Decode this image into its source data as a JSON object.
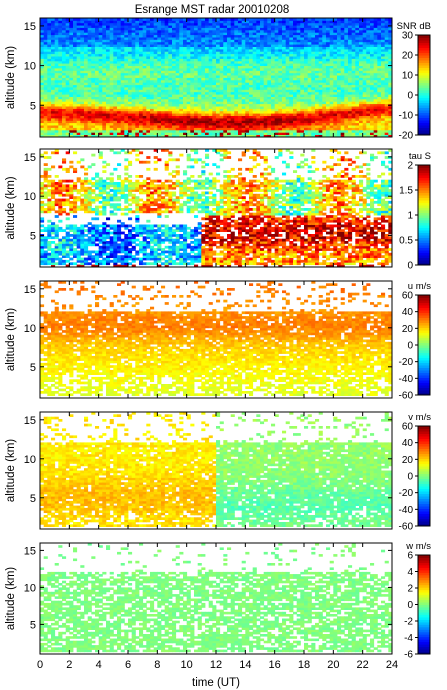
{
  "chart_data": [
    {
      "type": "heatmap",
      "title": "Esrange MST radar 20010208",
      "variable": "SNR",
      "colorbar_label": "SNR dB",
      "ylabel": "altitude (km)",
      "xlabel": "",
      "xlim": [
        0,
        24
      ],
      "ylim": [
        1,
        16
      ],
      "yticks": [
        5,
        10,
        15
      ],
      "xticks": [
        0,
        2,
        4,
        6,
        8,
        10,
        12,
        14,
        16,
        18,
        20,
        22,
        24
      ],
      "xtick_labels_shown": false,
      "clim": [
        -20,
        30
      ],
      "colorbar_ticks": [
        -20,
        -10,
        0,
        10,
        20,
        30
      ],
      "description_of_values": "Blue noise above ~12 km, green/yellow 7-12 km, strong red/orange layer ~2-5 km descending from ~4.5 km to ~3 km then rising after 16 UT; cyan band with red streaks near ground (1-2 km)."
    },
    {
      "type": "heatmap",
      "title": "",
      "variable": "tau",
      "colorbar_label": "tau S",
      "ylabel": "altitude (km)",
      "xlim": [
        0,
        24
      ],
      "ylim": [
        1,
        16
      ],
      "yticks": [
        5,
        10,
        15
      ],
      "xticks": [
        0,
        2,
        4,
        6,
        8,
        10,
        12,
        14,
        16,
        18,
        20,
        22,
        24
      ],
      "xtick_labels_shown": false,
      "clim": [
        0,
        2
      ],
      "colorbar_ticks": [
        0,
        0.5,
        1,
        1.5,
        2
      ],
      "description_of_values": "Sparse 12-16 km; yellow/orange ~1-1.5 s at 8-12 km; cyan/blue ~0.3-0.8 s at 3-7 km before 11 UT; red/dark red ~1.5-2 s at 3-7 km after 11 UT."
    },
    {
      "type": "heatmap",
      "title": "",
      "variable": "u",
      "colorbar_label": "u m/s",
      "ylabel": "altitude (km)",
      "xlim": [
        0,
        24
      ],
      "ylim": [
        1,
        16
      ],
      "yticks": [
        5,
        10,
        15
      ],
      "xticks": [
        0,
        2,
        4,
        6,
        8,
        10,
        12,
        14,
        16,
        18,
        20,
        22,
        24
      ],
      "xtick_labels_shown": false,
      "clim": [
        -60,
        60
      ],
      "colorbar_ticks": [
        -60,
        -40,
        -20,
        0,
        20,
        40,
        60
      ],
      "description_of_values": "Mostly positive zonal wind: ~10-20 m/s near the ground rising to ~30-40 m/s around 9-12 km; sparse above 13 km."
    },
    {
      "type": "heatmap",
      "title": "",
      "variable": "v",
      "colorbar_label": "v m/s",
      "ylabel": "altitude (km)",
      "xlim": [
        0,
        24
      ],
      "ylim": [
        1,
        16
      ],
      "yticks": [
        5,
        10,
        15
      ],
      "xticks": [
        0,
        2,
        4,
        6,
        8,
        10,
        12,
        14,
        16,
        18,
        20,
        22,
        24
      ],
      "xtick_labels_shown": false,
      "clim": [
        -60,
        60
      ],
      "colorbar_ticks": [
        -60,
        -40,
        -20,
        0,
        20,
        40,
        60
      ],
      "description_of_values": "Positive meridional wind ~20-30 m/s at 3-10 km before 12 UT, near zero / slightly negative (~-10 to -20 m/s) in the lower layers after 15 UT."
    },
    {
      "type": "heatmap",
      "title": "",
      "variable": "w",
      "colorbar_label": "w m/s",
      "ylabel": "altitude (km)",
      "xlabel": "time (UT)",
      "xlim": [
        0,
        24
      ],
      "ylim": [
        1,
        16
      ],
      "yticks": [
        5,
        10,
        15
      ],
      "xticks": [
        0,
        2,
        4,
        6,
        8,
        10,
        12,
        14,
        16,
        18,
        20,
        22,
        24
      ],
      "xtick_labels_shown": true,
      "clim": [
        -6,
        6
      ],
      "colorbar_ticks": [
        -6,
        -4,
        -2,
        0,
        2,
        4,
        6
      ],
      "description_of_values": "Vertical wind near zero everywhere (~-0.5 to +0.5 m/s), pale green, sparse coverage 1-12 km."
    }
  ]
}
